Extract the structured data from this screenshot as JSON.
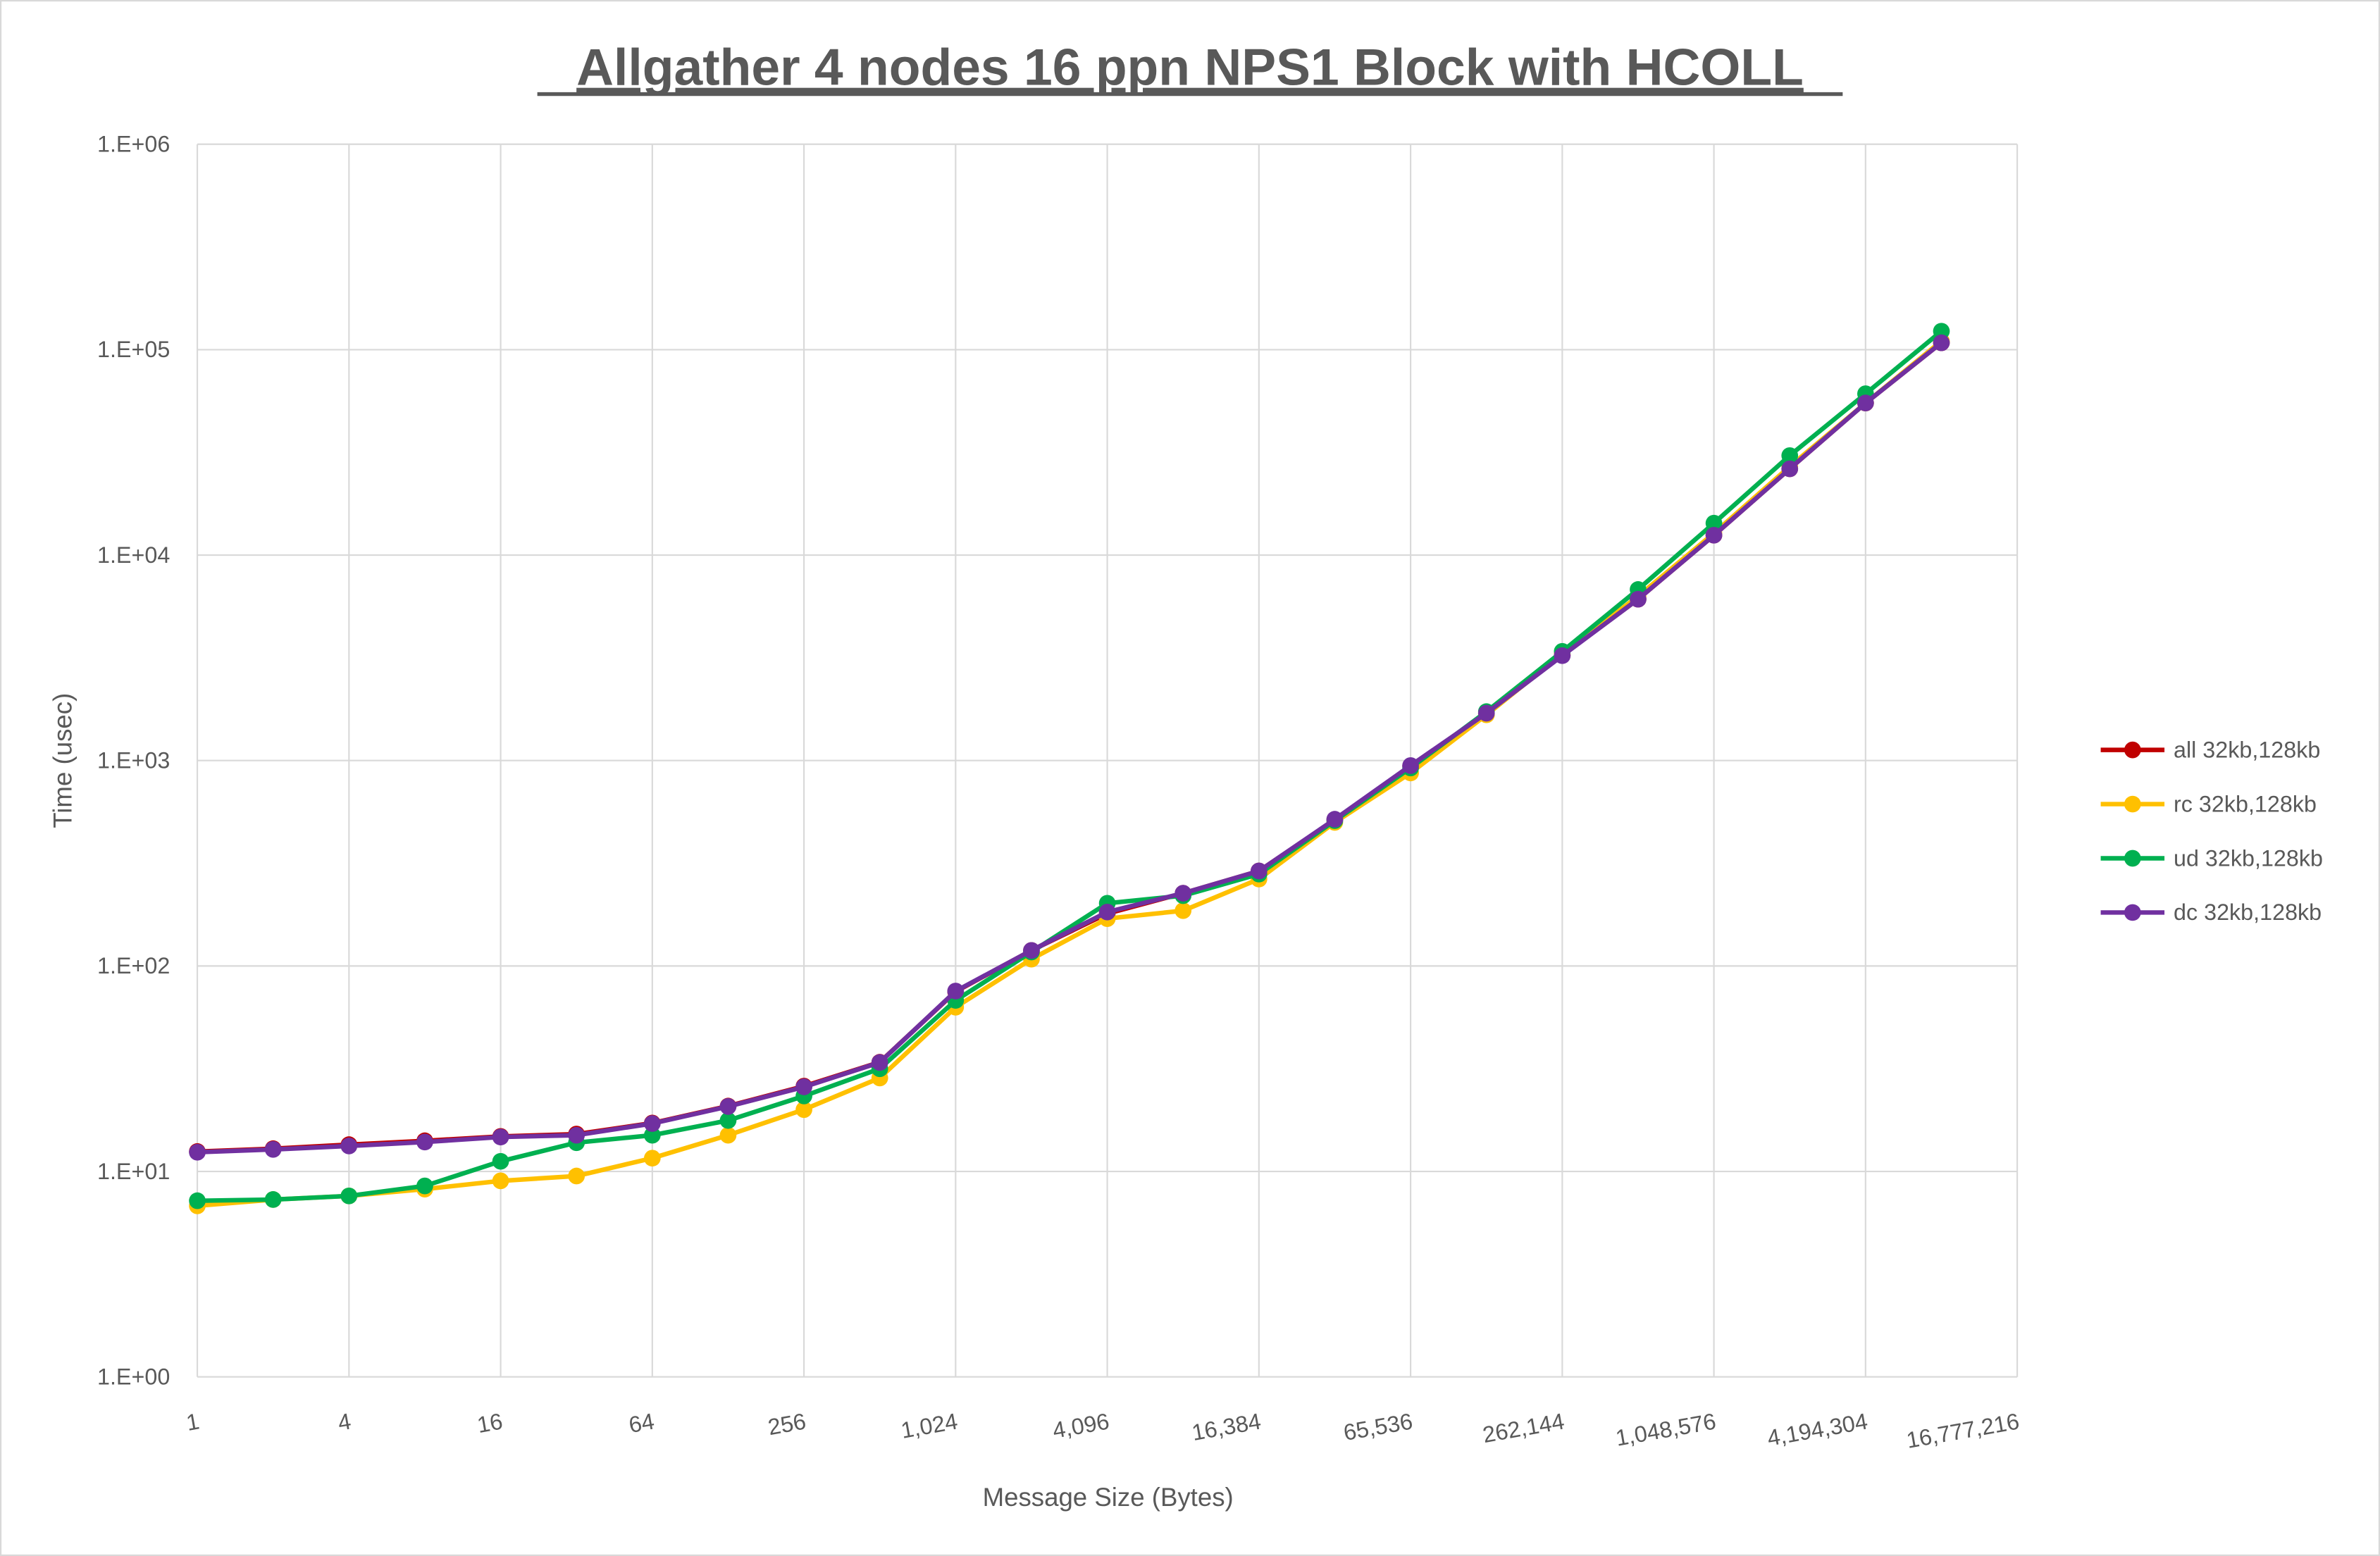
{
  "chart_data": {
    "type": "line",
    "title": "Allgather 4 nodes 16 ppn NPS1 Block with HCOLL",
    "xlabel": "Message Size (Bytes)",
    "ylabel": "Time (usec)",
    "x_scale": "log2",
    "y_scale": "log10",
    "ylim": [
      1,
      1000000
    ],
    "xlim": [
      1,
      16777216
    ],
    "grid": true,
    "legend_position": "right",
    "y_tick_labels": [
      "1.E+00",
      "1.E+01",
      "1.E+02",
      "1.E+03",
      "1.E+04",
      "1.E+05",
      "1.E+06"
    ],
    "x_tick_labels": [
      "1",
      "4",
      "16",
      "64",
      "256",
      "1,024",
      "4,096",
      "16,384",
      "65,536",
      "262,144",
      "1,048,576",
      "4,194,304",
      "16,777,216"
    ],
    "x": [
      1,
      2,
      4,
      8,
      16,
      32,
      64,
      128,
      256,
      512,
      1024,
      2048,
      4096,
      8192,
      16384,
      32768,
      65536,
      131072,
      262144,
      524288,
      1048576,
      2097152,
      4194304,
      8388608
    ],
    "series": [
      {
        "name": "all 32kb,128kb",
        "color": "#c00000",
        "values": [
          12.5,
          12.9,
          13.5,
          14.1,
          14.8,
          15.2,
          17.2,
          20.8,
          26,
          34,
          75,
          119,
          180,
          226,
          290,
          515,
          940,
          1700,
          3250,
          6100,
          12500,
          26300,
          55000,
          108000
        ]
      },
      {
        "name": "rc 32kb,128kb",
        "color": "#ffc000",
        "values": [
          6.8,
          7.3,
          7.6,
          8.2,
          9.0,
          9.5,
          11.6,
          15.0,
          20.0,
          28.5,
          63,
          108,
          170,
          186,
          265,
          500,
          870,
          1670,
          3300,
          6300,
          12800,
          27000,
          55000,
          110000
        ]
      },
      {
        "name": "ud 32kb,128kb",
        "color": "#00b050",
        "values": [
          7.2,
          7.3,
          7.6,
          8.5,
          11.2,
          13.8,
          15.0,
          17.7,
          23.3,
          31.6,
          68,
          117,
          202,
          220,
          280,
          510,
          920,
          1730,
          3400,
          6800,
          14300,
          30500,
          61000,
          123000
        ]
      },
      {
        "name": "dc 32kb,128kb",
        "color": "#7030a0",
        "values": [
          12.4,
          12.8,
          13.3,
          13.9,
          14.7,
          15.0,
          17.1,
          20.7,
          25.8,
          33.9,
          75.5,
          119,
          183,
          226,
          290,
          518,
          945,
          1700,
          3240,
          6100,
          12500,
          26300,
          55000,
          108000
        ]
      }
    ]
  }
}
